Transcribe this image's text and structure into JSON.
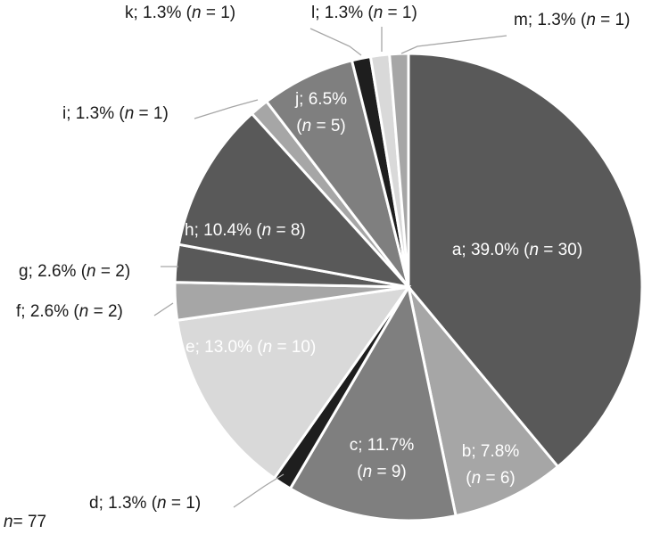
{
  "chart_data": {
    "type": "pie",
    "title": "",
    "total_label": "= 77",
    "total_prefix": "n",
    "slices": [
      {
        "label": "a",
        "percent": "39.0%",
        "n": 30,
        "color": "#595959",
        "text_color": "#ffffff",
        "pct_line": "a; 39.0% (",
        "n_line": ""
      },
      {
        "label": "b",
        "percent": "7.8%",
        "n": 6,
        "color": "#a6a6a6",
        "text_color": "#1a1a1a",
        "pct_line": "b; 7.8%",
        "n_line": "= 6)"
      },
      {
        "label": "c",
        "percent": "11.7%",
        "n": 9,
        "color": "#7f7f7f",
        "text_color": "#ffffff",
        "pct_line": "c; 11.7%",
        "n_line": "= 9)"
      },
      {
        "label": "d",
        "percent": "1.3%",
        "n": 1,
        "color": "#1e1e1e",
        "text_color": "#1a1a1a",
        "pct_line": "d; 1.3% (",
        "n_line": ""
      },
      {
        "label": "e",
        "percent": "13.0%",
        "n": 10,
        "color": "#d9d9d9",
        "text_color": "#1a1a1a",
        "pct_line": "e; 13.0% (",
        "n_line": ""
      },
      {
        "label": "f",
        "percent": "2.6%",
        "n": 2,
        "color": "#a6a6a6",
        "text_color": "#1a1a1a",
        "pct_line": "f; 2.6% (",
        "n_line": ""
      },
      {
        "label": "g",
        "percent": "2.6%",
        "n": 2,
        "color": "#595959",
        "text_color": "#1a1a1a",
        "pct_line": "g; 2.6% (",
        "n_line": ""
      },
      {
        "label": "h",
        "percent": "10.4%",
        "n": 8,
        "color": "#595959",
        "text_color": "#ffffff",
        "pct_line": "h; 10.4% (",
        "n_line": ""
      },
      {
        "label": "i",
        "percent": "1.3%",
        "n": 1,
        "color": "#a6a6a6",
        "text_color": "#1a1a1a",
        "pct_line": "i; 1.3% (",
        "n_line": ""
      },
      {
        "label": "j",
        "percent": "6.5%",
        "n": 5,
        "color": "#7f7f7f",
        "text_color": "#ffffff",
        "pct_line": "j; 6.5%",
        "n_line": "= 5)"
      },
      {
        "label": "k",
        "percent": "1.3%",
        "n": 1,
        "color": "#1e1e1e",
        "text_color": "#1a1a1a",
        "pct_line": "k; 1.3% (",
        "n_line": ""
      },
      {
        "label": "l",
        "percent": "1.3%",
        "n": 1,
        "color": "#d9d9d9",
        "text_color": "#1a1a1a",
        "pct_line": "l; 1.3% (",
        "n_line": ""
      },
      {
        "label": "m",
        "percent": "1.3%",
        "n": 1,
        "color": "#a6a6a6",
        "text_color": "#1a1a1a",
        "pct_line": "m; 1.3% (",
        "n_line": ""
      }
    ],
    "label_suffix_n": "n",
    "n_value_template": " = {n})",
    "leader_color": "#a6a6a6"
  }
}
